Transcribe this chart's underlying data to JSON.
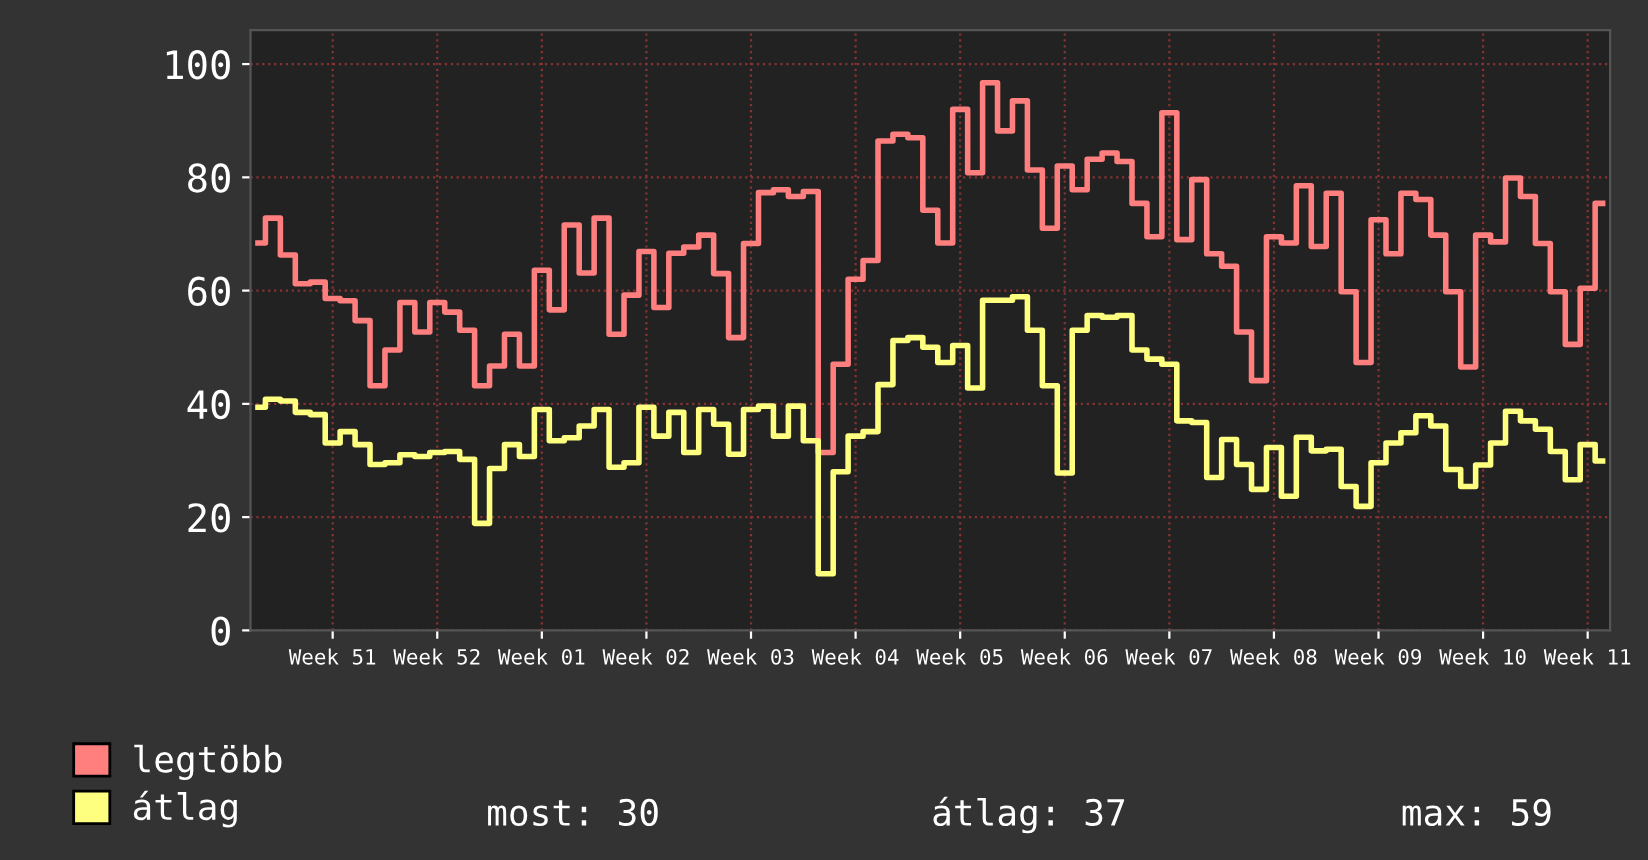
{
  "chart_data": {
    "type": "step",
    "categories": [
      null,
      null,
      null,
      null,
      null,
      "Week 51",
      null,
      null,
      null,
      null,
      null,
      null,
      "Week 52",
      null,
      null,
      null,
      null,
      null,
      null,
      "Week 01",
      null,
      null,
      null,
      null,
      null,
      null,
      "Week 02",
      null,
      null,
      null,
      null,
      null,
      null,
      "Week 03",
      null,
      null,
      null,
      null,
      null,
      null,
      "Week 04",
      null,
      null,
      null,
      null,
      null,
      null,
      "Week 05",
      null,
      null,
      null,
      null,
      null,
      null,
      "Week 06",
      null,
      null,
      null,
      null,
      null,
      null,
      "Week 07",
      null,
      null,
      null,
      null,
      null,
      null,
      "Week 08",
      null,
      null,
      null,
      null,
      null,
      null,
      "Week 09",
      null,
      null,
      null,
      null,
      null,
      null,
      "Week 10",
      null,
      null,
      null,
      null,
      null,
      null,
      "Week 11",
      null
    ],
    "series": [
      {
        "name": "legtöbb",
        "color": "#ff7f7f",
        "values": [
          68.4,
          72.8,
          66.3,
          61.2,
          61.5,
          58.6,
          58.2,
          54.7,
          43.2,
          49.5,
          57.9,
          52.7,
          57.9,
          56.2,
          53,
          43.2,
          46.7,
          52.3,
          46.7,
          63.6,
          56.6,
          71.6,
          63.1,
          72.8,
          52.3,
          59.2,
          66.9,
          57,
          66.6,
          67.7,
          69.8,
          63,
          51.7,
          68.3,
          77.3,
          77.8,
          76.6,
          77.5,
          31.4,
          47,
          62,
          65.3,
          86.4,
          87.6,
          87,
          74.2,
          68.4,
          92,
          80.8,
          96.7,
          88.2,
          93.5,
          81.3,
          71,
          82,
          77.8,
          83.2,
          84.3,
          82.8,
          75.4,
          69.5,
          91.4,
          69,
          79.6,
          66.5,
          64.3,
          52.7,
          44.1,
          69.5,
          68.4,
          78.5,
          67.8,
          77.2,
          59.8,
          47.3,
          72.5,
          66.5,
          77.2,
          76.1,
          69.8,
          59.8,
          46.5,
          69.8,
          68.6,
          79.9,
          76.6,
          68.3,
          59.8,
          50.5,
          60.4,
          75.4
        ]
      },
      {
        "name": "átlag",
        "color": "#ffff7f",
        "values": [
          39.4,
          40.8,
          40.5,
          38.5,
          38.1,
          33.1,
          35.1,
          32.8,
          29.3,
          29.6,
          31,
          30.7,
          31.4,
          31.6,
          30.2,
          18.9,
          28.6,
          32.8,
          30.7,
          39,
          33.5,
          34,
          36.1,
          39,
          28.8,
          29.6,
          39.4,
          34.3,
          38.5,
          31.4,
          39,
          36.4,
          31.1,
          39,
          39.6,
          34.3,
          39.6,
          33.5,
          10,
          28,
          34.3,
          35.1,
          43.4,
          51.2,
          51.7,
          50,
          47.3,
          50.3,
          42.8,
          58.3,
          58.3,
          58.9,
          53,
          43.2,
          27.8,
          53,
          55.6,
          55.3,
          55.6,
          49.5,
          47.9,
          47,
          37,
          36.7,
          27,
          33.7,
          29.3,
          24.9,
          32.3,
          23.7,
          34.1,
          31.7,
          32,
          25.4,
          21.9,
          29.6,
          33.1,
          34.9,
          37.9,
          36.1,
          28.4,
          25.4,
          29.2,
          33.1,
          38.7,
          37,
          35.5,
          31.6,
          26.6,
          32.8,
          29.9
        ]
      }
    ],
    "ylim": [
      0,
      106
    ],
    "yticks": [
      0,
      20,
      40,
      60,
      80,
      100
    ],
    "grid": true,
    "legend": "bottom left",
    "annotations": [
      "most: 30",
      "átlag: 37",
      "max: 59"
    ]
  }
}
